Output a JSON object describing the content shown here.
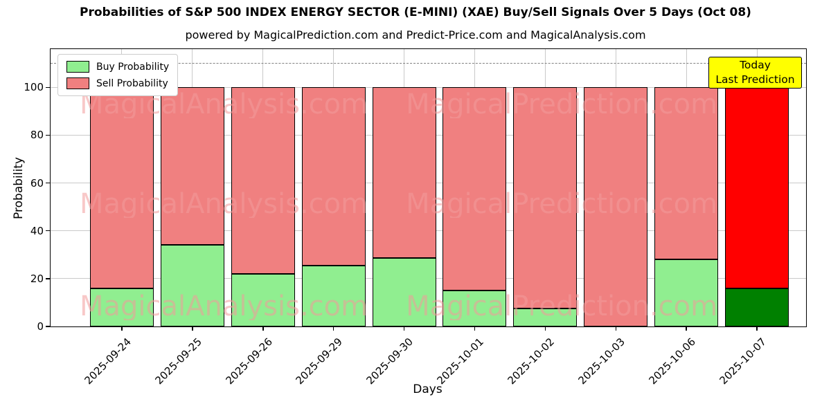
{
  "title": "Probabilities of S&P 500 INDEX ENERGY SECTOR (E-MINI) (XAE) Buy/Sell Signals Over 5 Days (Oct 08)",
  "subtitle": "powered by MagicalPrediction.com and Predict-Price.com and MagicalAnalysis.com",
  "legend": {
    "items": [
      {
        "label": "Buy Probability",
        "color": "#90EE90"
      },
      {
        "label": "Sell Probability",
        "color": "#F08080"
      }
    ]
  },
  "annotation": {
    "line1": "Today",
    "line2": "Last Prediction",
    "bg_color": "#FFFF00"
  },
  "watermark": {
    "left_text": "MagicalAnalysis.com",
    "right_text": "MagicalPrediction.com"
  },
  "colors": {
    "buy": "#90EE90",
    "sell": "#F08080",
    "today_buy": "#008000",
    "today_sell": "#FF0000",
    "bar_edge": "#000000",
    "grid": "#c9c9c9",
    "dashed_line": "#7f7f7f"
  },
  "chart_data": {
    "type": "bar",
    "stacked": true,
    "title": "Probabilities of S&P 500 INDEX ENERGY SECTOR (E-MINI) (XAE) Buy/Sell Signals Over 5 Days (Oct 08)",
    "xlabel": "Days",
    "ylabel": "Probability",
    "categories": [
      "2025-09-24",
      "2025-09-25",
      "2025-09-26",
      "2025-09-29",
      "2025-09-30",
      "2025-10-01",
      "2025-10-02",
      "2025-10-03",
      "2025-10-06",
      "2025-10-07"
    ],
    "series": [
      {
        "name": "Buy Probability",
        "values": [
          16,
          34,
          22,
          25.5,
          28.5,
          15,
          7.5,
          0,
          28,
          16
        ]
      },
      {
        "name": "Sell Probability",
        "values": [
          84,
          66,
          78,
          74.5,
          71.5,
          85,
          92.5,
          100,
          72,
          84
        ]
      }
    ],
    "today_index": 9,
    "yticks": [
      0,
      20,
      40,
      60,
      80,
      100
    ],
    "ylim": [
      0,
      116
    ],
    "dashed_line_y": 110,
    "grid": true,
    "legend_position": "upper left"
  }
}
